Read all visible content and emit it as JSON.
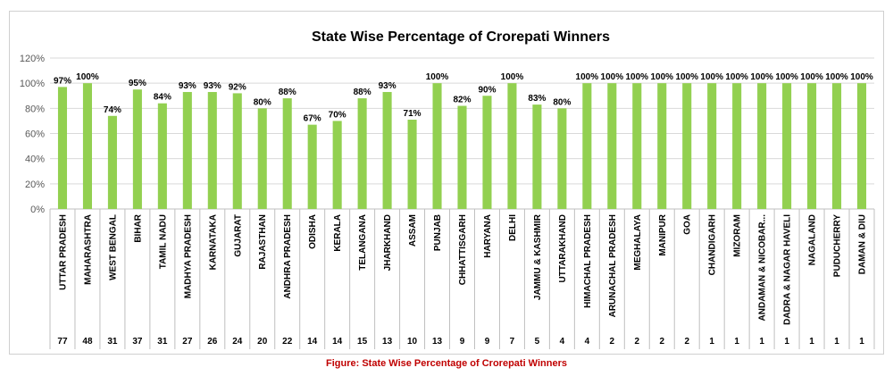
{
  "chart_data": {
    "type": "bar",
    "title": "State Wise Percentage of Crorepati Winners",
    "xlabel": "",
    "ylabel": "",
    "ylim": [
      0,
      120
    ],
    "yticks": [
      "0%",
      "20%",
      "40%",
      "60%",
      "80%",
      "100%",
      "120%"
    ],
    "categories": [
      "UTTAR PRADESH",
      "MAHARASHTRA",
      "WEST BENGAL",
      "BIHAR",
      "TAMIL NADU",
      "MADHYA PRADESH",
      "KARNATAKA",
      "GUJARAT",
      "RAJASTHAN",
      "ANDHRA PRADESH",
      "ODISHA",
      "KERALA",
      "TELANGANA",
      "JHARKHAND",
      "ASSAM",
      "PUNJAB",
      "CHHATTISGARH",
      "HARYANA",
      "DELHI",
      "JAMMU & KASHMIR",
      "UTTARAKHAND",
      "HIMACHAL PRADESH",
      "ARUNACHAL PRADESH",
      "MEGHALAYA",
      "MANIPUR",
      "GOA",
      "CHANDIGARH",
      "MIZORAM",
      "ANDAMAN & NICOBAR...",
      "DADRA & NAGAR HAVELI",
      "NAGALAND",
      "PUDUCHERRY",
      "DAMAN & DIU"
    ],
    "values": [
      97,
      100,
      74,
      95,
      84,
      93,
      93,
      92,
      80,
      88,
      67,
      70,
      88,
      93,
      71,
      100,
      82,
      90,
      100,
      83,
      80,
      100,
      100,
      100,
      100,
      100,
      100,
      100,
      100,
      100,
      100,
      100,
      100
    ],
    "value_labels": [
      "97%",
      "100%",
      "74%",
      "95%",
      "84%",
      "93%",
      "93%",
      "92%",
      "80%",
      "88%",
      "67%",
      "70%",
      "88%",
      "93%",
      "71%",
      "100%",
      "82%",
      "90%",
      "100%",
      "83%",
      "80%",
      "100%",
      "100%",
      "100%",
      "100%",
      "100%",
      "100%",
      "100%",
      "100%",
      "100%",
      "100%",
      "100%",
      "100%"
    ],
    "counts": [
      "77",
      "48",
      "31",
      "37",
      "31",
      "27",
      "26",
      "24",
      "20",
      "22",
      "14",
      "14",
      "15",
      "13",
      "10",
      "13",
      "9",
      "9",
      "7",
      "5",
      "4",
      "4",
      "2",
      "2",
      "2",
      "2",
      "1",
      "1",
      "1",
      "1",
      "1",
      "1",
      "1"
    ],
    "bar_color": "#92d050",
    "grid": true,
    "legend": "none"
  },
  "caption": "Figure: State Wise Percentage of Crorepati Winners"
}
